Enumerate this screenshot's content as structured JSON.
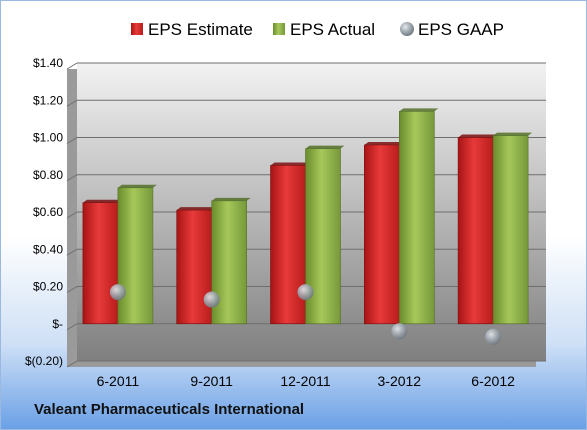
{
  "company": "Valeant Pharmaceuticals International",
  "chart_data": {
    "type": "bar",
    "categories": [
      "6-2011",
      "9-2011",
      "12-2011",
      "3-2012",
      "6-2012"
    ],
    "series": [
      {
        "name": "EPS Estimate",
        "kind": "bar",
        "color": "#d42a2a",
        "values": [
          0.65,
          0.61,
          0.85,
          0.96,
          1.0
        ]
      },
      {
        "name": "EPS Actual",
        "kind": "bar",
        "color": "#8bb043",
        "values": [
          0.73,
          0.66,
          0.94,
          1.14,
          1.01
        ]
      },
      {
        "name": "EPS GAAP",
        "kind": "marker",
        "color": "#9aa3ab",
        "values": [
          0.17,
          0.13,
          0.17,
          -0.04,
          -0.07
        ]
      }
    ],
    "yticks": [
      -0.2,
      0,
      0.2,
      0.4,
      0.6,
      0.8,
      1.0,
      1.2,
      1.4
    ],
    "ytick_labels": [
      "$(0.20)",
      "$-",
      "$0.20",
      "$0.40",
      "$0.60",
      "$0.80",
      "$1.00",
      "$1.20",
      "$1.40"
    ],
    "ylim": [
      -0.2,
      1.4
    ],
    "grid": true,
    "legend": "top"
  }
}
